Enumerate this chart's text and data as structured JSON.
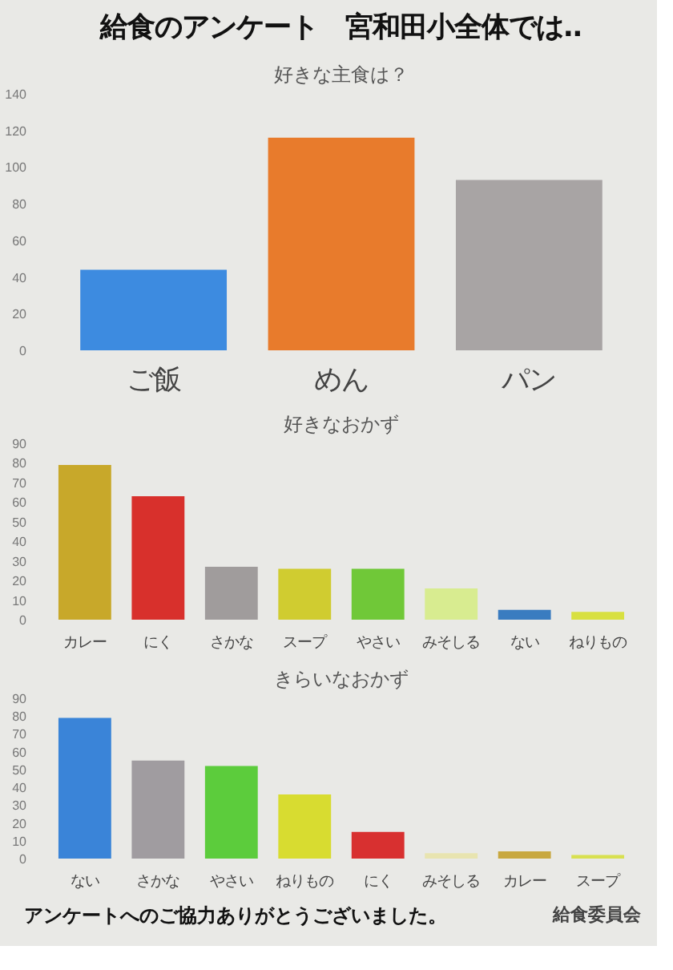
{
  "chart_data": [
    {
      "type": "bar",
      "title": "給食のアンケート　宮和田小全体では‥",
      "subtitle": "好きな主食は？",
      "categories": [
        "ご飯",
        "めん",
        "パン"
      ],
      "values": [
        44,
        116,
        93
      ],
      "colors": [
        "#3d8be0",
        "#e87b2c",
        "#a8a4a4"
      ],
      "ylim": [
        0,
        140
      ],
      "yticks": [
        0,
        20,
        40,
        60,
        80,
        100,
        120,
        140
      ]
    },
    {
      "type": "bar",
      "subtitle": "好きなおかず",
      "categories": [
        "カレー",
        "にく",
        "さかな",
        "スープ",
        "やさい",
        "みそしる",
        "ない",
        "ねりもの"
      ],
      "values": [
        79,
        63,
        27,
        26,
        26,
        16,
        5,
        4
      ],
      "colors": [
        "#c8a82a",
        "#d8302c",
        "#a09c9c",
        "#d0cc30",
        "#70c838",
        "#d8ec90",
        "#3a7cc0",
        "#d8e040"
      ],
      "ylim": [
        0,
        90
      ],
      "yticks": [
        0,
        10,
        20,
        30,
        40,
        50,
        60,
        70,
        80,
        90
      ]
    },
    {
      "type": "bar",
      "subtitle": "きらいなおかず",
      "categories": [
        "ない",
        "さかな",
        "やさい",
        "ねりもの",
        "にく",
        "みそしる",
        "カレー",
        "スープ"
      ],
      "values": [
        79,
        55,
        52,
        36,
        15,
        3,
        4,
        2
      ],
      "colors": [
        "#3a84d8",
        "#a09ca0",
        "#5ccc3c",
        "#d8dc30",
        "#d83030",
        "#e8e4b0",
        "#c8a840",
        "#d8e050"
      ],
      "ylim": [
        0,
        90
      ],
      "yticks": [
        0,
        10,
        20,
        30,
        40,
        50,
        60,
        70,
        80,
        90
      ],
      "annotations": [
        "アンケートへのご協力ありがとうございました。",
        "給食委員会"
      ]
    }
  ]
}
